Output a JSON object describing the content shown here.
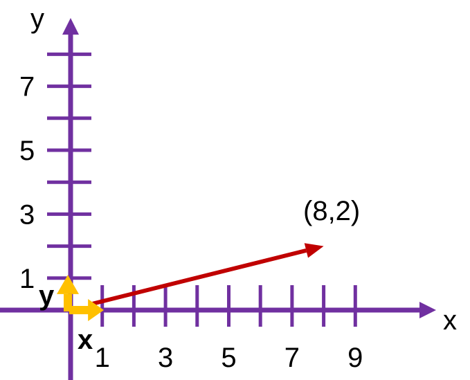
{
  "axes": {
    "x_label": "x",
    "y_label": "y",
    "x_ticks": [
      1,
      2,
      3,
      4,
      5,
      6,
      7,
      8,
      9
    ],
    "x_tick_labels": [
      {
        "value": 1,
        "text": "1"
      },
      {
        "value": 3,
        "text": "3"
      },
      {
        "value": 5,
        "text": "5"
      },
      {
        "value": 7,
        "text": "7"
      },
      {
        "value": 9,
        "text": "9"
      }
    ],
    "y_ticks": [
      1,
      2,
      3,
      4,
      5,
      6,
      7,
      8
    ],
    "y_tick_labels": [
      {
        "value": 1,
        "text": "1"
      },
      {
        "value": 3,
        "text": "3"
      },
      {
        "value": 5,
        "text": "5"
      },
      {
        "value": 7,
        "text": "7"
      }
    ],
    "color": "#7030A0"
  },
  "basis": {
    "x_label": "x",
    "y_label": "y",
    "color": "#FFC000"
  },
  "vector": {
    "label": "(8,2)",
    "x": 8,
    "y": 2,
    "color": "#C00000"
  }
}
